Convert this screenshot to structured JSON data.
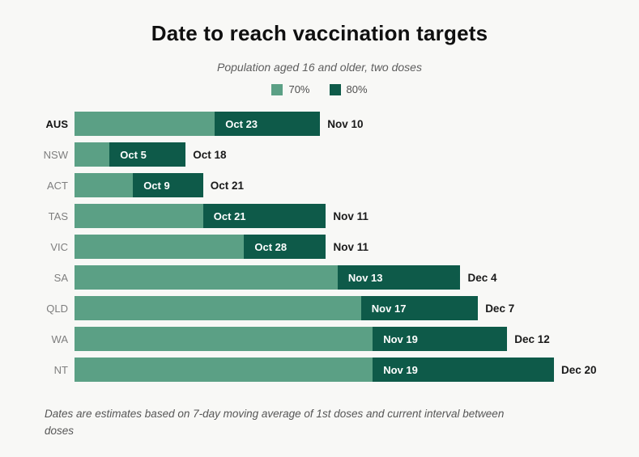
{
  "colors": {
    "background": "#f8f8f6",
    "seventy_green": "#5ba085",
    "eighty_green": "#0e5a49",
    "title_text": "#101010",
    "muted_text": "#5d5d5d",
    "row_label_gray": "#7e7e7e"
  },
  "chart_data": {
    "type": "bar",
    "orientation": "horizontal",
    "title": "Date to reach vaccination targets",
    "subtitle": "Population aged 16 and older, two doses",
    "categories": [
      "AUS",
      "NSW",
      "ACT",
      "TAS",
      "VIC",
      "SA",
      "QLD",
      "WA",
      "NT"
    ],
    "highlight_category": "AUS",
    "series": [
      {
        "name": "70%",
        "color": "#5ba085",
        "dates": [
          "Oct 23",
          "Oct 5",
          "Oct 9",
          "Oct 21",
          "Oct 28",
          "Nov 13",
          "Nov 17",
          "Nov 19",
          "Nov 19"
        ]
      },
      {
        "name": "80%",
        "color": "#0e5a49",
        "dates": [
          "Nov 10",
          "Oct 18",
          "Oct 21",
          "Nov 11",
          "Nov 11",
          "Dec 4",
          "Dec 7",
          "Dec 12",
          "Dec 20"
        ]
      }
    ],
    "axis": {
      "origin_date": "Sep 29"
    },
    "legend_position": "top-center",
    "grid": false,
    "footnote": "Dates are estimates based on 7-day moving average of 1st doses and current interval between doses"
  }
}
